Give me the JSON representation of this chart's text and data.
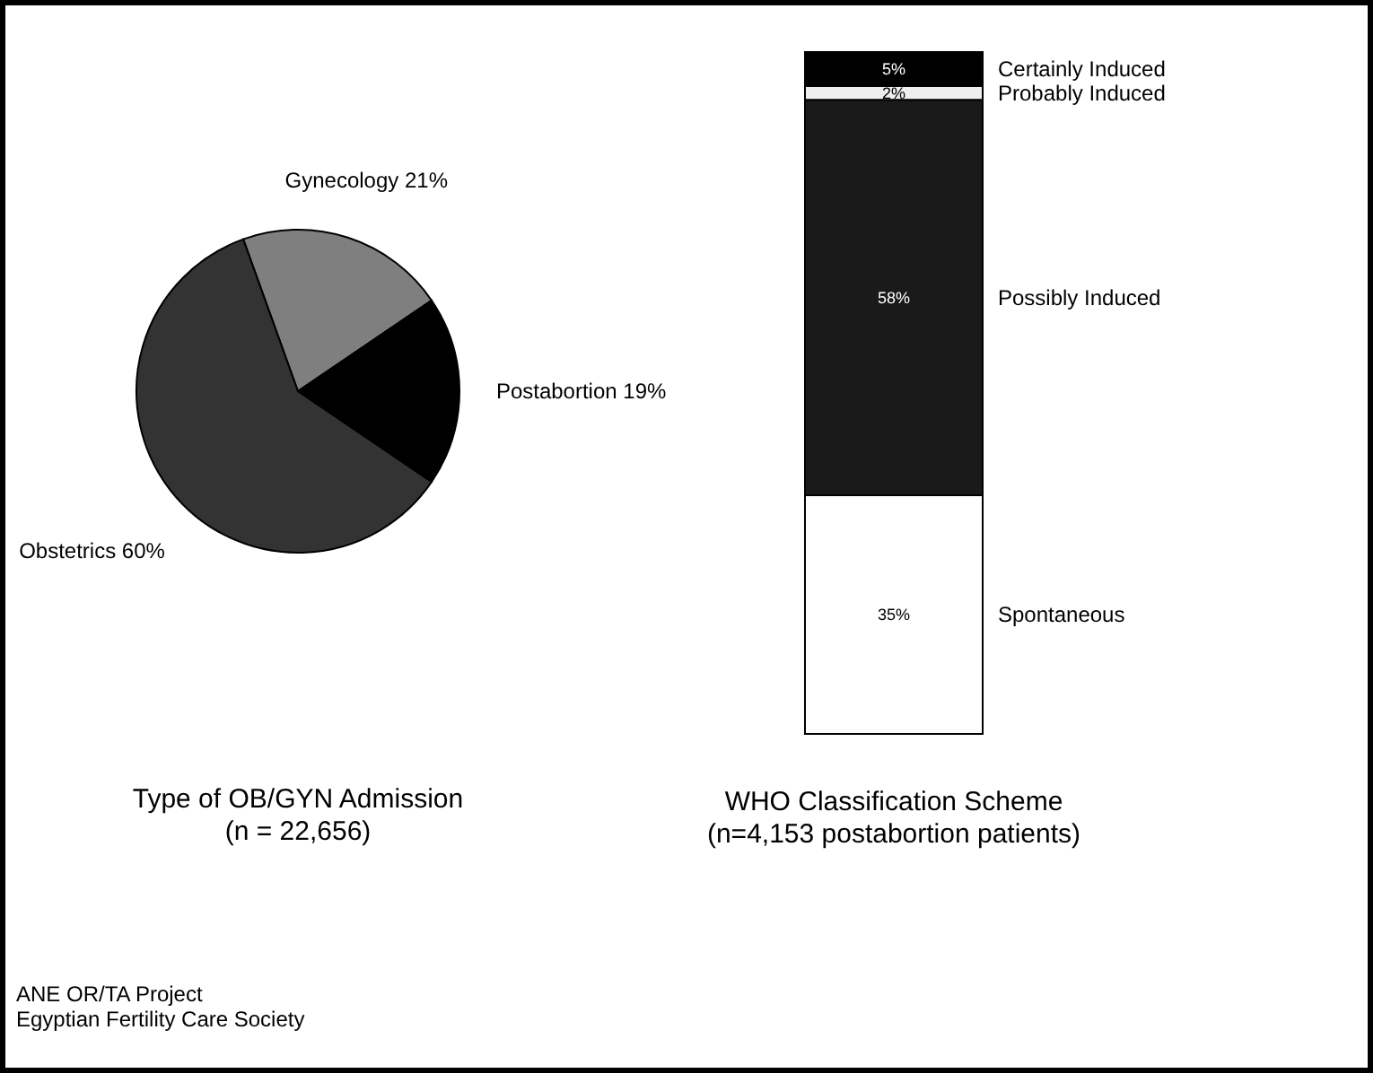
{
  "chart_data": [
    {
      "type": "pie",
      "title": "Type of OB/GYN Admission",
      "subtitle": "(n = 22,656)",
      "categories": [
        "Gynecology",
        "Postabortion",
        "Obstetrics"
      ],
      "values": [
        21,
        19,
        60
      ],
      "value_labels": [
        "21%",
        "19%",
        "60%"
      ],
      "colors": [
        "#7f7f7f",
        "#000000",
        "#333333"
      ],
      "annotations": [
        "ANE OR/TA Project",
        "Egyptian Fertility Care Society"
      ]
    },
    {
      "type": "bar",
      "stacked": true,
      "title": "WHO Classification Scheme",
      "subtitle": "(n=4,153 postabortion patients)",
      "categories": [
        null
      ],
      "series": [
        {
          "name": "Spontaneous",
          "color": "#ffffff",
          "values": [
            35
          ],
          "value_labels": [
            "35%"
          ]
        },
        {
          "name": "Possibly Induced",
          "color": "#1a1a1a",
          "values": [
            58
          ],
          "value_labels": [
            "58%"
          ]
        },
        {
          "name": "Probably Induced",
          "color": "#eeeeee",
          "values": [
            2
          ],
          "value_labels": [
            "2%"
          ]
        },
        {
          "name": "Certainly Induced",
          "color": "#000000",
          "values": [
            5
          ],
          "value_labels": [
            "5%"
          ]
        }
      ]
    }
  ]
}
